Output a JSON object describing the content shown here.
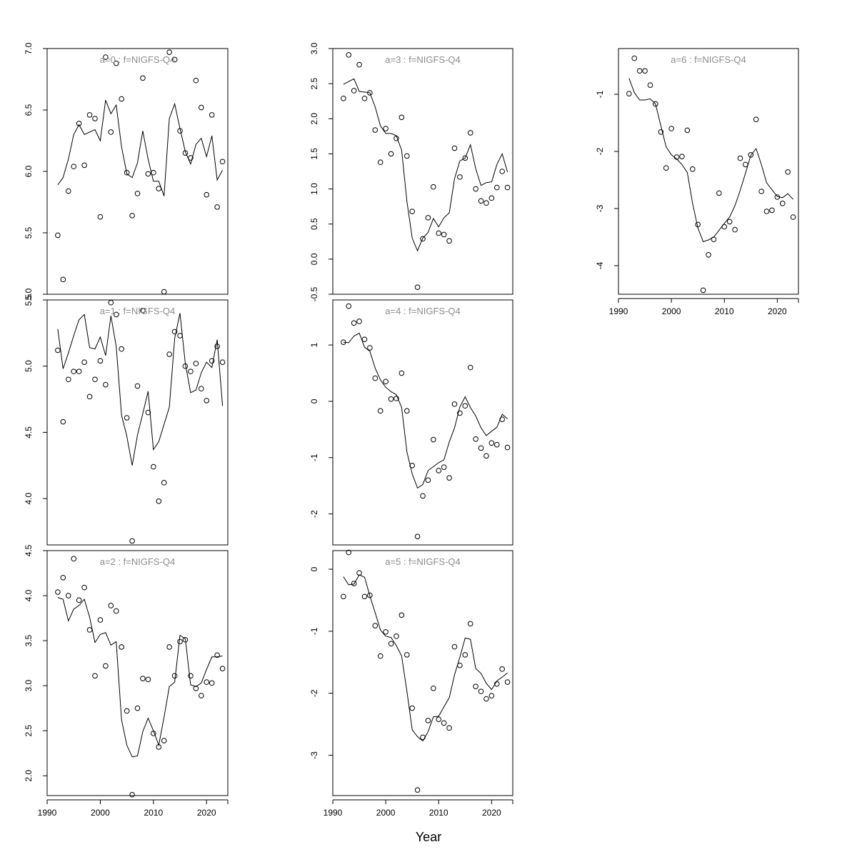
{
  "xlabel": "Year",
  "chart_data": [
    {
      "type": "line",
      "title": "a=0  :  f=NIGFS-Q4",
      "ylim": [
        5.0,
        7.0
      ],
      "yticks": [
        5.0,
        5.5,
        6.0,
        6.5,
        7.0
      ],
      "ytick_labels": [
        "5.0",
        "5.5",
        "6.0",
        "6.5",
        "7.0"
      ],
      "xlim": [
        1990,
        2024
      ],
      "xticks": [
        1990,
        2000,
        2010,
        2020
      ],
      "xtick_labels": [],
      "x": [
        1992,
        1993,
        1994,
        1995,
        1996,
        1997,
        1998,
        1999,
        2000,
        2001,
        2002,
        2003,
        2004,
        2005,
        2006,
        2007,
        2008,
        2009,
        2010,
        2011,
        2012,
        2013,
        2014,
        2015,
        2016,
        2017,
        2018,
        2019,
        2020,
        2021,
        2022,
        2023
      ],
      "series": [
        {
          "kind": "line",
          "values": [
            5.89,
            5.95,
            6.1,
            6.3,
            6.38,
            6.3,
            6.32,
            6.34,
            6.25,
            6.58,
            6.47,
            6.54,
            6.2,
            5.98,
            5.95,
            6.07,
            6.33,
            6.1,
            5.92,
            5.92,
            5.8,
            6.43,
            6.55,
            6.35,
            6.16,
            6.06,
            6.22,
            6.27,
            6.12,
            6.29,
            5.93,
            6.01
          ]
        },
        {
          "kind": "points",
          "values": [
            5.48,
            5.12,
            5.84,
            6.04,
            6.39,
            6.05,
            6.46,
            6.43,
            5.63,
            6.93,
            6.32,
            6.88,
            6.59,
            5.99,
            5.64,
            5.82,
            6.76,
            5.98,
            5.99,
            5.86,
            5.02,
            6.97,
            6.91,
            6.33,
            6.15,
            6.11,
            6.74,
            6.52,
            5.81,
            6.46,
            5.71,
            6.08
          ]
        }
      ]
    },
    {
      "type": "line",
      "title": "a=1  :  f=NIGFS-Q4",
      "ylim": [
        3.65,
        5.5
      ],
      "yticks": [
        4.0,
        4.5,
        5.0,
        5.5
      ],
      "ytick_labels": [
        "4.0",
        "4.5",
        "5.0",
        "5.5"
      ],
      "xlim": [
        1990,
        2024
      ],
      "xticks": [
        1990,
        2000,
        2010,
        2020
      ],
      "xtick_labels": [],
      "x": [
        1992,
        1993,
        1994,
        1995,
        1996,
        1997,
        1998,
        1999,
        2000,
        2001,
        2002,
        2003,
        2004,
        2005,
        2006,
        2007,
        2008,
        2009,
        2010,
        2011,
        2012,
        2013,
        2014,
        2015,
        2016,
        2017,
        2018,
        2019,
        2020,
        2021,
        2022,
        2023
      ],
      "series": [
        {
          "kind": "line",
          "values": [
            5.28,
            4.98,
            5.1,
            5.23,
            5.35,
            5.39,
            5.14,
            5.13,
            5.22,
            5.08,
            5.38,
            5.15,
            4.63,
            4.47,
            4.25,
            4.48,
            4.64,
            4.81,
            4.37,
            4.43,
            4.56,
            4.69,
            5.21,
            5.4,
            5.02,
            4.8,
            4.82,
            4.95,
            5.03,
            4.99,
            5.2,
            4.7
          ]
        },
        {
          "kind": "points",
          "values": [
            5.12,
            4.58,
            4.9,
            4.96,
            4.96,
            5.03,
            4.77,
            4.9,
            5.04,
            4.86,
            5.48,
            5.39,
            5.13,
            4.61,
            3.68,
            4.85,
            5.42,
            4.65,
            4.24,
            3.98,
            4.12,
            5.09,
            5.26,
            5.23,
            5.0,
            4.96,
            5.02,
            4.83,
            4.74,
            5.04,
            5.15,
            5.03
          ]
        }
      ]
    },
    {
      "type": "line",
      "title": "a=2  :  f=NIGFS-Q4",
      "ylim": [
        1.78,
        4.5
      ],
      "yticks": [
        2.0,
        2.5,
        3.0,
        3.5,
        4.0,
        4.5
      ],
      "ytick_labels": [
        "2.0",
        "2.5",
        "3.0",
        "3.5",
        "4.0",
        "4.5"
      ],
      "xlim": [
        1990,
        2024
      ],
      "xticks": [
        1990,
        2000,
        2010,
        2020
      ],
      "xtick_labels": [
        "1990",
        "2000",
        "2010",
        "2020"
      ],
      "x": [
        1992,
        1993,
        1994,
        1995,
        1996,
        1997,
        1998,
        1999,
        2000,
        2001,
        2002,
        2003,
        2004,
        2005,
        2006,
        2007,
        2008,
        2009,
        2010,
        2011,
        2012,
        2013,
        2014,
        2015,
        2016,
        2017,
        2018,
        2019,
        2020,
        2021,
        2022,
        2023
      ],
      "series": [
        {
          "kind": "line",
          "values": [
            3.98,
            3.96,
            3.72,
            3.85,
            3.89,
            3.96,
            3.76,
            3.48,
            3.57,
            3.59,
            3.45,
            3.49,
            2.62,
            2.34,
            2.21,
            2.22,
            2.49,
            2.64,
            2.5,
            2.34,
            2.65,
            2.99,
            3.04,
            3.56,
            3.52,
            3.01,
            2.99,
            3.03,
            3.18,
            3.32,
            3.32,
            3.33
          ]
        },
        {
          "kind": "points",
          "values": [
            4.04,
            4.2,
            4.0,
            4.41,
            3.95,
            4.09,
            3.62,
            3.11,
            3.73,
            3.22,
            3.89,
            3.83,
            3.43,
            2.72,
            1.79,
            2.75,
            3.08,
            3.07,
            2.47,
            2.32,
            2.39,
            3.43,
            3.11,
            3.49,
            3.51,
            3.11,
            2.97,
            2.89,
            3.04,
            3.03,
            3.34,
            3.19
          ]
        }
      ]
    },
    {
      "type": "line",
      "title": "a=3  :  f=NIGFS-Q4",
      "ylim": [
        -0.5,
        3.0
      ],
      "yticks": [
        -0.5,
        0.0,
        0.5,
        1.0,
        1.5,
        2.0,
        2.5,
        3.0
      ],
      "ytick_labels": [
        "-0.5",
        "0.0",
        "0.5",
        "1.0",
        "1.5",
        "2.0",
        "2.5",
        "3.0"
      ],
      "xlim": [
        1990,
        2024
      ],
      "xticks": [
        1990,
        2000,
        2010,
        2020
      ],
      "xtick_labels": [],
      "x": [
        1992,
        1993,
        1994,
        1995,
        1996,
        1997,
        1998,
        1999,
        2000,
        2001,
        2002,
        2003,
        2004,
        2005,
        2006,
        2007,
        2008,
        2009,
        2010,
        2011,
        2012,
        2013,
        2014,
        2015,
        2016,
        2017,
        2018,
        2019,
        2020,
        2021,
        2022,
        2023
      ],
      "series": [
        {
          "kind": "line",
          "values": [
            2.49,
            2.53,
            2.57,
            2.39,
            2.38,
            2.37,
            2.17,
            1.9,
            1.79,
            1.79,
            1.76,
            1.55,
            0.82,
            0.3,
            0.12,
            0.3,
            0.38,
            0.58,
            0.46,
            0.59,
            0.66,
            1.15,
            1.4,
            1.44,
            1.63,
            1.29,
            1.05,
            1.09,
            1.1,
            1.35,
            1.5,
            1.24
          ]
        },
        {
          "kind": "points",
          "values": [
            2.29,
            2.91,
            2.4,
            2.77,
            2.29,
            2.37,
            1.84,
            1.38,
            1.86,
            1.5,
            1.72,
            2.02,
            1.47,
            0.68,
            -0.4,
            0.29,
            0.59,
            1.03,
            0.37,
            0.35,
            0.26,
            1.58,
            1.17,
            1.44,
            1.8,
            1.0,
            0.83,
            0.8,
            0.87,
            1.02,
            1.25,
            1.02
          ]
        }
      ]
    },
    {
      "type": "line",
      "title": "a=4  :  f=NIGFS-Q4",
      "ylim": [
        -2.55,
        1.8
      ],
      "yticks": [
        -2,
        -1,
        0,
        1
      ],
      "ytick_labels": [
        "-2",
        "-1",
        "0",
        "1"
      ],
      "xlim": [
        1990,
        2024
      ],
      "xticks": [
        1990,
        2000,
        2010,
        2020
      ],
      "xtick_labels": [],
      "x": [
        1992,
        1993,
        1994,
        1995,
        1996,
        1997,
        1998,
        1999,
        2000,
        2001,
        2002,
        2003,
        2004,
        2005,
        2006,
        2007,
        2008,
        2009,
        2010,
        2011,
        2012,
        2013,
        2014,
        2015,
        2016,
        2017,
        2018,
        2019,
        2020,
        2021,
        2022,
        2023
      ],
      "series": [
        {
          "kind": "line",
          "values": [
            1.05,
            1.04,
            1.16,
            1.21,
            0.96,
            0.89,
            0.59,
            0.38,
            0.25,
            0.17,
            0.12,
            -0.11,
            -0.9,
            -1.29,
            -1.54,
            -1.48,
            -1.23,
            -1.16,
            -1.09,
            -1.04,
            -0.72,
            -0.47,
            -0.1,
            0.08,
            -0.11,
            -0.26,
            -0.47,
            -0.61,
            -0.53,
            -0.46,
            -0.23,
            -0.31
          ]
        },
        {
          "kind": "points",
          "values": [
            1.05,
            1.69,
            1.39,
            1.42,
            1.1,
            0.95,
            0.41,
            -0.17,
            0.35,
            0.04,
            0.05,
            0.5,
            -0.17,
            -1.14,
            -2.4,
            -1.68,
            -1.4,
            -0.68,
            -1.23,
            -1.17,
            -1.36,
            -0.05,
            -0.21,
            -0.08,
            0.6,
            -0.67,
            -0.83,
            -0.97,
            -0.74,
            -0.77,
            -0.32,
            -0.82
          ]
        }
      ]
    },
    {
      "type": "line",
      "title": "a=5  :  f=NIGFS-Q4",
      "ylim": [
        -3.65,
        0.3
      ],
      "yticks": [
        -3,
        -2,
        -1,
        0
      ],
      "ytick_labels": [
        "-3",
        "-2",
        "-1",
        "0"
      ],
      "xlim": [
        1990,
        2024
      ],
      "xticks": [
        1990,
        2000,
        2010,
        2020
      ],
      "xtick_labels": [
        "1990",
        "2000",
        "2010",
        "2020"
      ],
      "x": [
        1992,
        1993,
        1994,
        1995,
        1996,
        1997,
        1998,
        1999,
        2000,
        2001,
        2002,
        2003,
        2004,
        2005,
        2006,
        2007,
        2008,
        2009,
        2010,
        2011,
        2012,
        2013,
        2014,
        2015,
        2016,
        2017,
        2018,
        2019,
        2020,
        2021,
        2022,
        2023
      ],
      "series": [
        {
          "kind": "line",
          "values": [
            -0.12,
            -0.25,
            -0.24,
            -0.09,
            -0.13,
            -0.43,
            -0.7,
            -0.98,
            -1.08,
            -1.1,
            -1.23,
            -1.4,
            -1.97,
            -2.59,
            -2.7,
            -2.77,
            -2.62,
            -2.38,
            -2.37,
            -2.22,
            -2.07,
            -1.7,
            -1.42,
            -1.11,
            -1.13,
            -1.6,
            -1.68,
            -1.84,
            -1.94,
            -1.8,
            -1.74,
            -1.67
          ]
        },
        {
          "kind": "points",
          "values": [
            -0.44,
            0.27,
            -0.23,
            -0.06,
            -0.44,
            -0.42,
            -0.91,
            -1.4,
            -1.01,
            -1.2,
            -1.08,
            -0.74,
            -1.38,
            -2.24,
            -3.56,
            -2.71,
            -2.44,
            -1.92,
            -2.42,
            -2.48,
            -2.56,
            -1.25,
            -1.55,
            -1.38,
            -0.88,
            -1.89,
            -1.97,
            -2.09,
            -2.04,
            -1.85,
            -1.61,
            -1.82
          ]
        }
      ]
    },
    {
      "type": "line",
      "title": "a=6  :  f=NIGFS-Q4",
      "ylim": [
        -4.5,
        -0.2
      ],
      "yticks": [
        -4,
        -3,
        -2,
        -1
      ],
      "ytick_labels": [
        "-4",
        "-3",
        "-2",
        "-1"
      ],
      "xlim": [
        1990,
        2024
      ],
      "xticks": [
        1990,
        2000,
        2010,
        2020
      ],
      "xtick_labels": [
        "1990",
        "2000",
        "2010",
        "2020"
      ],
      "x": [
        1992,
        1993,
        1994,
        1995,
        1996,
        1997,
        1998,
        1999,
        2000,
        2001,
        2002,
        2003,
        2004,
        2005,
        2006,
        2007,
        2008,
        2009,
        2010,
        2011,
        2012,
        2013,
        2014,
        2015,
        2016,
        2017,
        2018,
        2019,
        2020,
        2021,
        2022,
        2023
      ],
      "series": [
        {
          "kind": "line",
          "values": [
            -0.72,
            -0.97,
            -1.1,
            -1.1,
            -1.08,
            -1.17,
            -1.55,
            -1.92,
            -2.06,
            -2.13,
            -2.23,
            -2.37,
            -2.91,
            -3.34,
            -3.58,
            -3.55,
            -3.5,
            -3.38,
            -3.26,
            -3.15,
            -2.95,
            -2.68,
            -2.38,
            -2.07,
            -1.95,
            -2.23,
            -2.55,
            -2.67,
            -2.79,
            -2.81,
            -2.74,
            -2.84
          ]
        },
        {
          "kind": "points",
          "values": [
            -0.99,
            -0.37,
            -0.59,
            -0.59,
            -0.84,
            -1.17,
            -1.66,
            -2.29,
            -1.6,
            -2.1,
            -2.09,
            -1.63,
            -2.31,
            -3.28,
            -4.43,
            -3.81,
            -3.54,
            -2.73,
            -3.32,
            -3.23,
            -3.37,
            -2.12,
            -2.23,
            -2.06,
            -1.44,
            -2.7,
            -3.05,
            -3.03,
            -2.8,
            -2.91,
            -2.36,
            -3.15
          ]
        }
      ]
    }
  ]
}
